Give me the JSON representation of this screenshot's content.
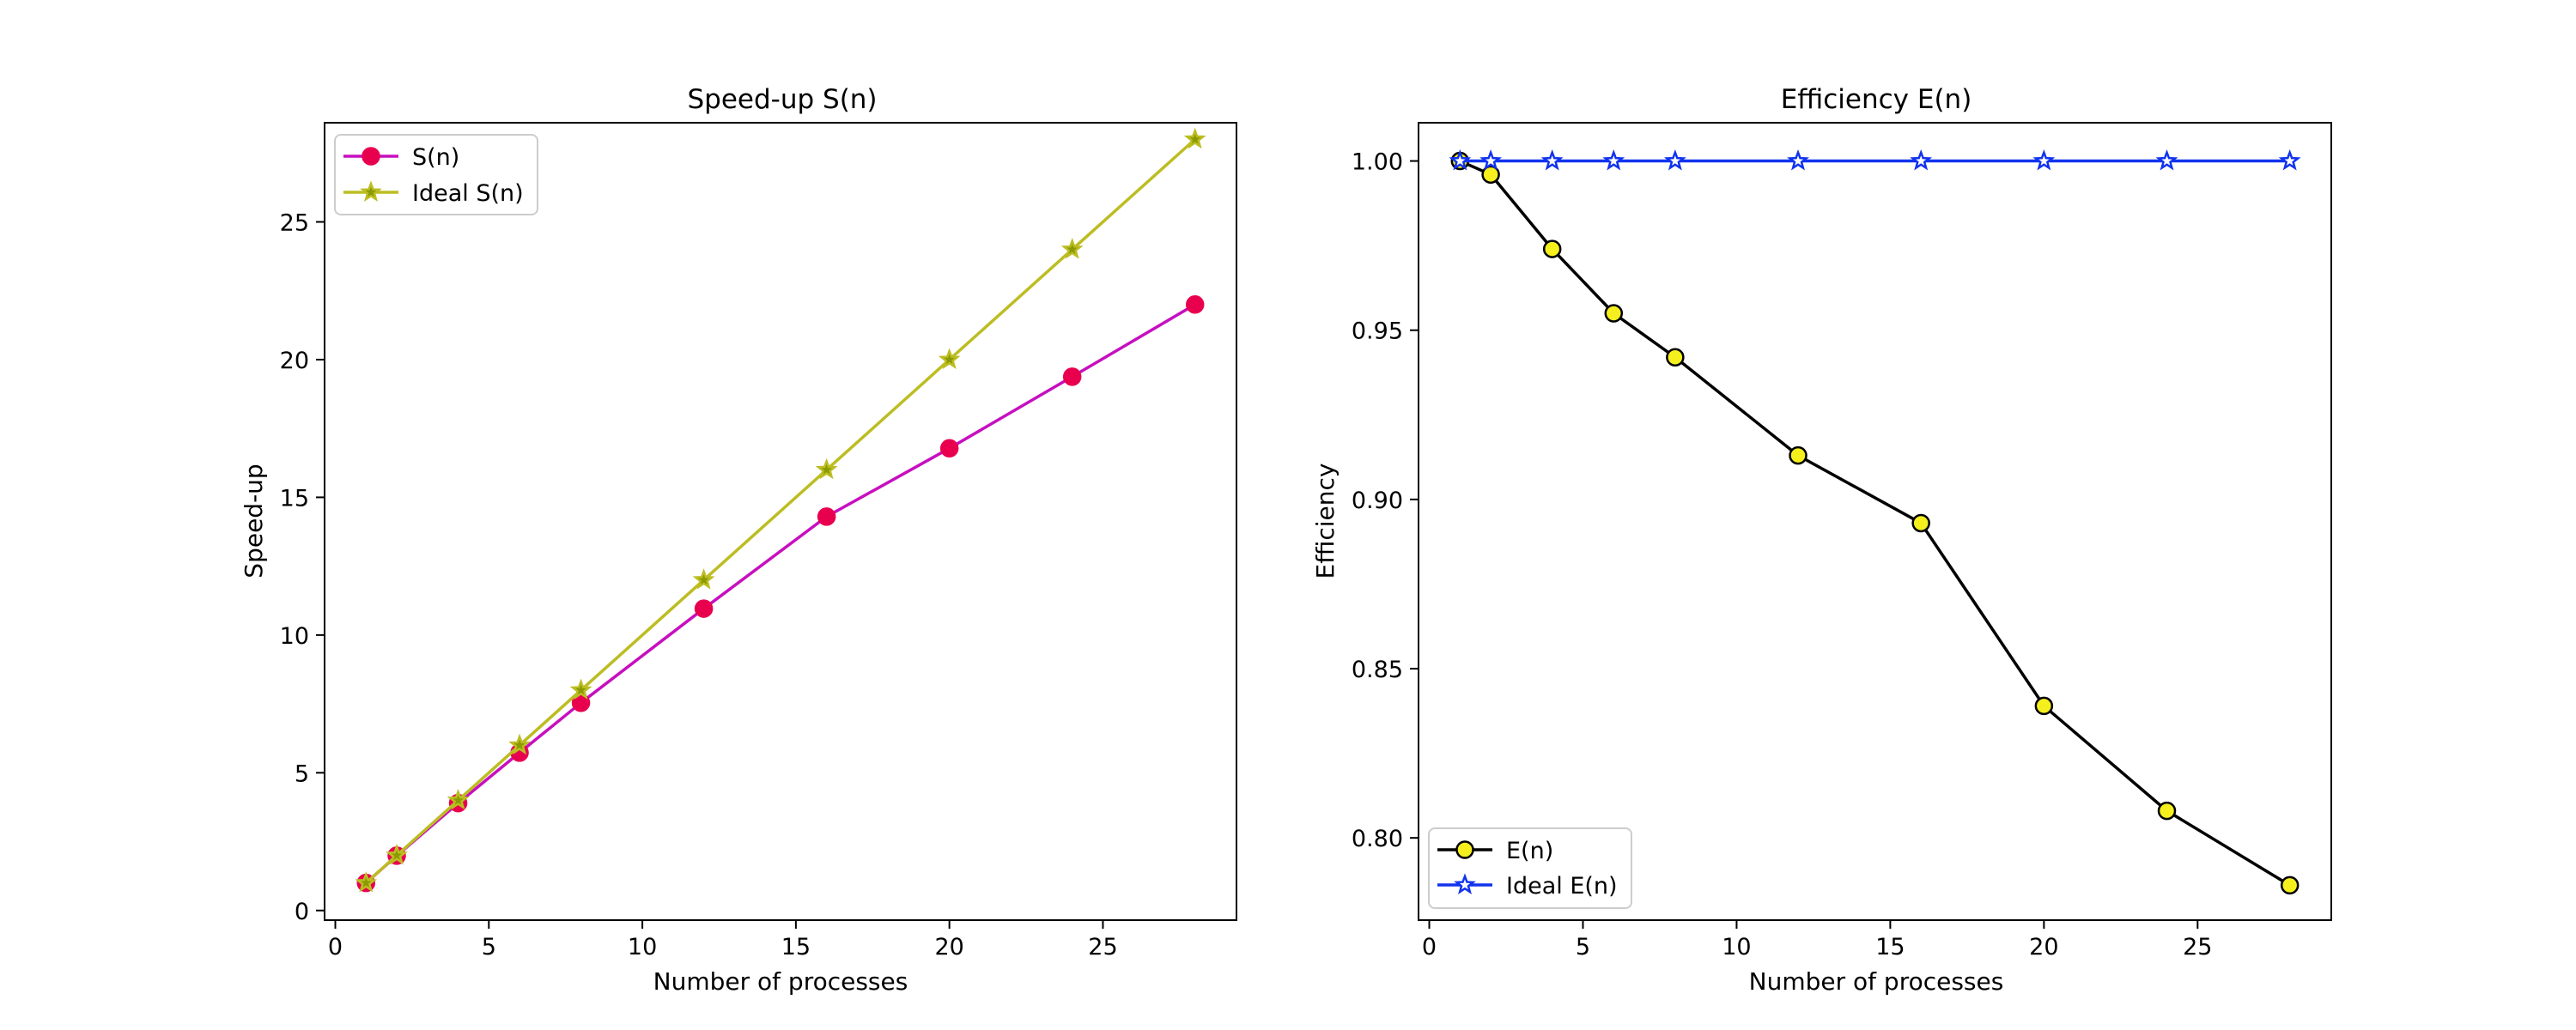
{
  "chart_data": [
    {
      "type": "line",
      "title": "Speed-up S(n)",
      "xlabel": "Number of processes",
      "ylabel": "Speed-up",
      "xlim": [
        -0.35,
        29.35
      ],
      "ylim": [
        -0.35,
        28.6
      ],
      "xticks": [
        0,
        5,
        10,
        15,
        20,
        25
      ],
      "xtick_labels": [
        "0",
        "5",
        "10",
        "15",
        "20",
        "25"
      ],
      "yticks": [
        0,
        5,
        10,
        15,
        20,
        25
      ],
      "ytick_labels": [
        "0",
        "5",
        "10",
        "15",
        "20",
        "25"
      ],
      "grid": false,
      "legend_position": "upper-left",
      "x": [
        1,
        2,
        4,
        6,
        8,
        12,
        16,
        20,
        24,
        28
      ],
      "series": [
        {
          "name": "S(n)",
          "values": [
            1.0,
            1.99,
            3.9,
            5.73,
            7.54,
            10.96,
            14.3,
            16.78,
            19.38,
            22.0
          ],
          "color": "#c70fbf",
          "marker": "circle",
          "marker_fill": "#e8004f",
          "marker_edge": "#e8004f"
        },
        {
          "name": "Ideal S(n)",
          "values": [
            1,
            2,
            4,
            6,
            8,
            12,
            16,
            20,
            24,
            28
          ],
          "color": "#bcbd22",
          "marker": "star",
          "marker_fill": "#8a9a00",
          "marker_edge": "#bcbd22"
        }
      ]
    },
    {
      "type": "line",
      "title": "Efficiency E(n)",
      "xlabel": "Number of processes",
      "ylabel": "Efficiency",
      "xlim": [
        -0.35,
        29.35
      ],
      "ylim": [
        0.7757,
        1.0113
      ],
      "xticks": [
        0,
        5,
        10,
        15,
        20,
        25
      ],
      "xtick_labels": [
        "0",
        "5",
        "10",
        "15",
        "20",
        "25"
      ],
      "yticks": [
        0.8,
        0.85,
        0.9,
        0.95,
        1.0
      ],
      "ytick_labels": [
        "0.80",
        "0.85",
        "0.90",
        "0.95",
        "1.00"
      ],
      "grid": false,
      "legend_position": "lower-left",
      "x": [
        1,
        2,
        4,
        6,
        8,
        12,
        16,
        20,
        24,
        28
      ],
      "series": [
        {
          "name": "E(n)",
          "values": [
            1.0,
            0.996,
            0.974,
            0.955,
            0.942,
            0.913,
            0.893,
            0.839,
            0.808,
            0.786
          ],
          "color": "#000000",
          "marker": "circle",
          "marker_fill": "#f5ef1e",
          "marker_edge": "#000000"
        },
        {
          "name": "Ideal E(n)",
          "values": [
            1,
            1,
            1,
            1,
            1,
            1,
            1,
            1,
            1,
            1
          ],
          "color": "#1133ee",
          "marker": "star",
          "marker_fill": "#ffffff",
          "marker_edge": "#1133ee"
        }
      ]
    }
  ]
}
